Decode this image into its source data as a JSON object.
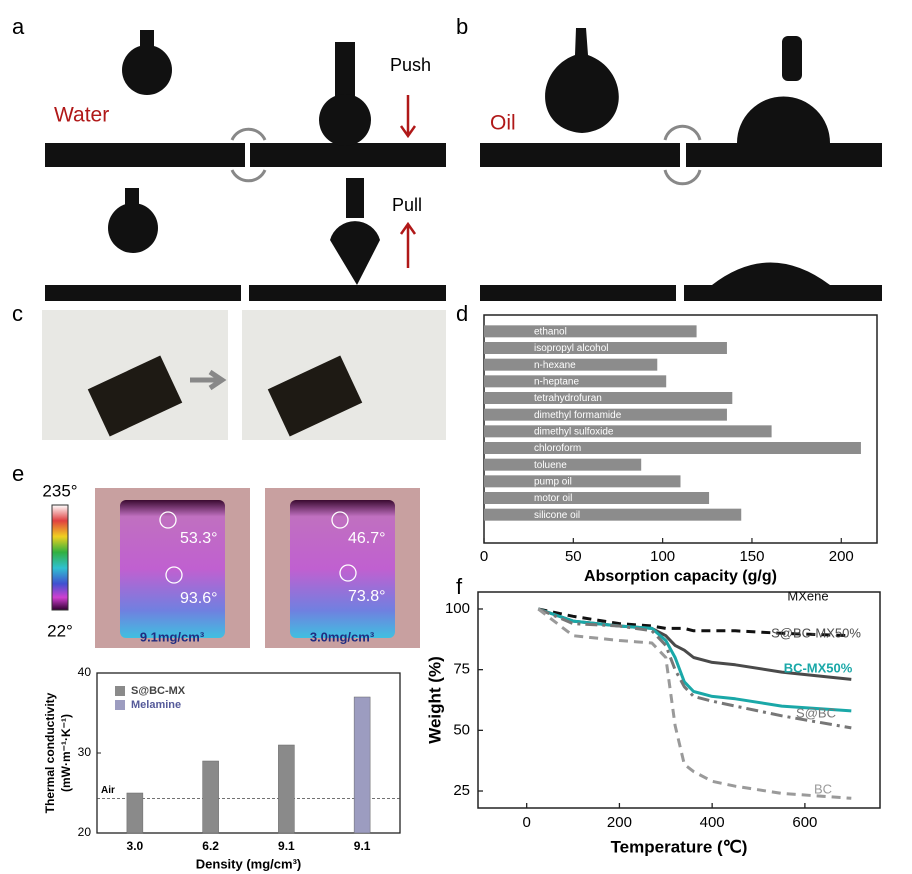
{
  "panel_labels": [
    "a",
    "b",
    "c",
    "d",
    "e",
    "f"
  ],
  "images": {
    "a": {
      "liquid": "Water",
      "push": "Push",
      "pull": "Pull"
    },
    "b": {
      "liquid": "Oil"
    },
    "e": {
      "scale_max": "235°",
      "scale_min": "22°",
      "left": {
        "top_temp": "53.3°",
        "bottom_temp": "93.6°",
        "density": "9.1mg/cm³"
      },
      "right": {
        "top_temp": "46.7°",
        "bottom_temp": "73.8°",
        "density": "3.0mg/cm³"
      }
    }
  },
  "chart_data": [
    {
      "type": "hbar",
      "xlabel": "Absorption capacity (g/g)",
      "categories": [
        "ethanol",
        "isopropyl alcohol",
        "n-hexane",
        "n-heptane",
        "tetrahydrofuran",
        "dimethyl formamide",
        "dimethyl sulfoxide",
        "chloroform",
        "toluene",
        "pump oil",
        "motor oil",
        "silicone oil"
      ],
      "values": [
        119,
        136,
        97,
        102,
        139,
        136,
        161,
        211,
        88,
        110,
        126,
        144
      ],
      "color": "#8c8c8c",
      "xlim": [
        0,
        220
      ],
      "xticks": [
        0,
        50,
        100,
        150,
        200
      ]
    },
    {
      "type": "bar",
      "xlabel": "Density (mg/cm³)",
      "ylabel": [
        "Thermal conductivity",
        "(mW·m⁻¹·K⁻¹)"
      ],
      "categories": [
        "3.0",
        "6.2",
        "9.1",
        "9.1"
      ],
      "series": [
        {
          "name": "S@BC-MX",
          "color": "#8a8a8a",
          "values": [
            25,
            29,
            31,
            null
          ]
        },
        {
          "name": "Melamine",
          "color": "#9c9cc0",
          "values": [
            null,
            null,
            null,
            37
          ]
        }
      ],
      "reference": {
        "label": "Air",
        "value": 24.3
      },
      "ylim": [
        20,
        40
      ],
      "yticks": [
        20,
        30,
        40
      ],
      "legend": "upper-left"
    },
    {
      "type": "line",
      "xlabel": "Temperature (℃)",
      "ylabel": "Weight (%)",
      "x": [
        25,
        100,
        200,
        270,
        300,
        320,
        340,
        360,
        400,
        450,
        550,
        700
      ],
      "series": [
        {
          "name": "MXene",
          "color": "#111111",
          "dash": "dashed",
          "values": [
            100,
            97,
            94,
            93,
            92,
            92,
            92,
            91,
            91,
            91,
            90,
            89
          ]
        },
        {
          "name": "S@BC-MX50%",
          "color": "#4a4a4a",
          "dash": "solid",
          "values": [
            100,
            95,
            93,
            92,
            89,
            85,
            83,
            80,
            78,
            77,
            74,
            71
          ]
        },
        {
          "name": "BC-MX50%",
          "color": "#1aa8a8",
          "dash": "solid",
          "values": [
            100,
            95,
            93,
            92,
            87,
            80,
            70,
            66,
            64,
            63,
            60,
            58
          ]
        },
        {
          "name": "S@BC",
          "color": "#777777",
          "dash": "dashdot",
          "values": [
            100,
            94,
            93,
            91,
            85,
            75,
            68,
            64,
            62,
            60,
            56,
            51
          ]
        },
        {
          "name": "BC",
          "color": "#9a9a9a",
          "dash": "dashed",
          "values": [
            100,
            89,
            87,
            86,
            80,
            52,
            36,
            33,
            29,
            27,
            24,
            22
          ]
        }
      ],
      "xlim": [
        -105,
        762
      ],
      "ylim": [
        18,
        107
      ],
      "xticks": [
        0,
        200,
        400,
        600
      ],
      "yticks": [
        25,
        50,
        75,
        100
      ]
    }
  ]
}
